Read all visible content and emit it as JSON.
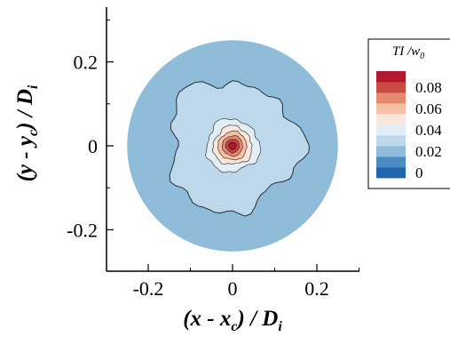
{
  "chart_data": {
    "type": "heatmap",
    "title": "",
    "x": {
      "min": -0.3,
      "max": 0.3,
      "ticks": [
        -0.2,
        0,
        0.2
      ],
      "tick_labels": [
        "-0.2",
        "0",
        "0.2"
      ],
      "label": {
        "open": "(",
        "var": "x",
        "sep": " - ",
        "sub_var": "x",
        "sub": "c",
        "close": ")",
        "slash": " / ",
        "norm": "D",
        "norm_sub": "i"
      }
    },
    "y": {
      "min": -0.3,
      "max": 0.33,
      "ticks": [
        -0.2,
        0,
        0.2
      ],
      "tick_labels": [
        "-0.2",
        "0",
        "0.2"
      ],
      "label": {
        "open": "(",
        "var": "y",
        "sep": " - ",
        "sub_var": "y",
        "sub": "c",
        "close": ")",
        "slash": " / ",
        "norm": "D",
        "norm_sub": "i"
      }
    },
    "domain": {
      "shape": "circle",
      "center": [
        0,
        0
      ],
      "radius": 0.25
    },
    "legend": {
      "title": "TI /w",
      "title_sub": "0",
      "placement": "right",
      "levels": [
        0,
        0.01,
        0.02,
        0.03,
        0.04,
        0.05,
        0.06,
        0.07,
        0.08,
        0.09
      ],
      "colors": [
        "#2166ac",
        "#4b8bc4",
        "#8ebcd9",
        "#bcd8ea",
        "#e2eef6",
        "#f8e6dc",
        "#f4bfa4",
        "#e38a70",
        "#c94a43",
        "#b2182b"
      ],
      "tick_values": [
        "0",
        "0.02",
        "0.04",
        "0.06",
        "0.08"
      ]
    },
    "contours": [
      {
        "level": 0.02,
        "fill": "#bcd8ea",
        "radius": 0.155
      },
      {
        "level": 0.03,
        "fill": "#e2eef6",
        "radius": 0.063
      },
      {
        "level": 0.04,
        "fill": "#f8e6dc",
        "radius": 0.046
      },
      {
        "level": 0.05,
        "fill": "#f4bfa4",
        "radius": 0.034
      },
      {
        "level": 0.06,
        "fill": "#e38a70",
        "radius": 0.024
      },
      {
        "level": 0.07,
        "fill": "#c94a43",
        "radius": 0.016
      },
      {
        "level": 0.08,
        "fill": "#b2182b",
        "radius": 0.009
      }
    ]
  }
}
